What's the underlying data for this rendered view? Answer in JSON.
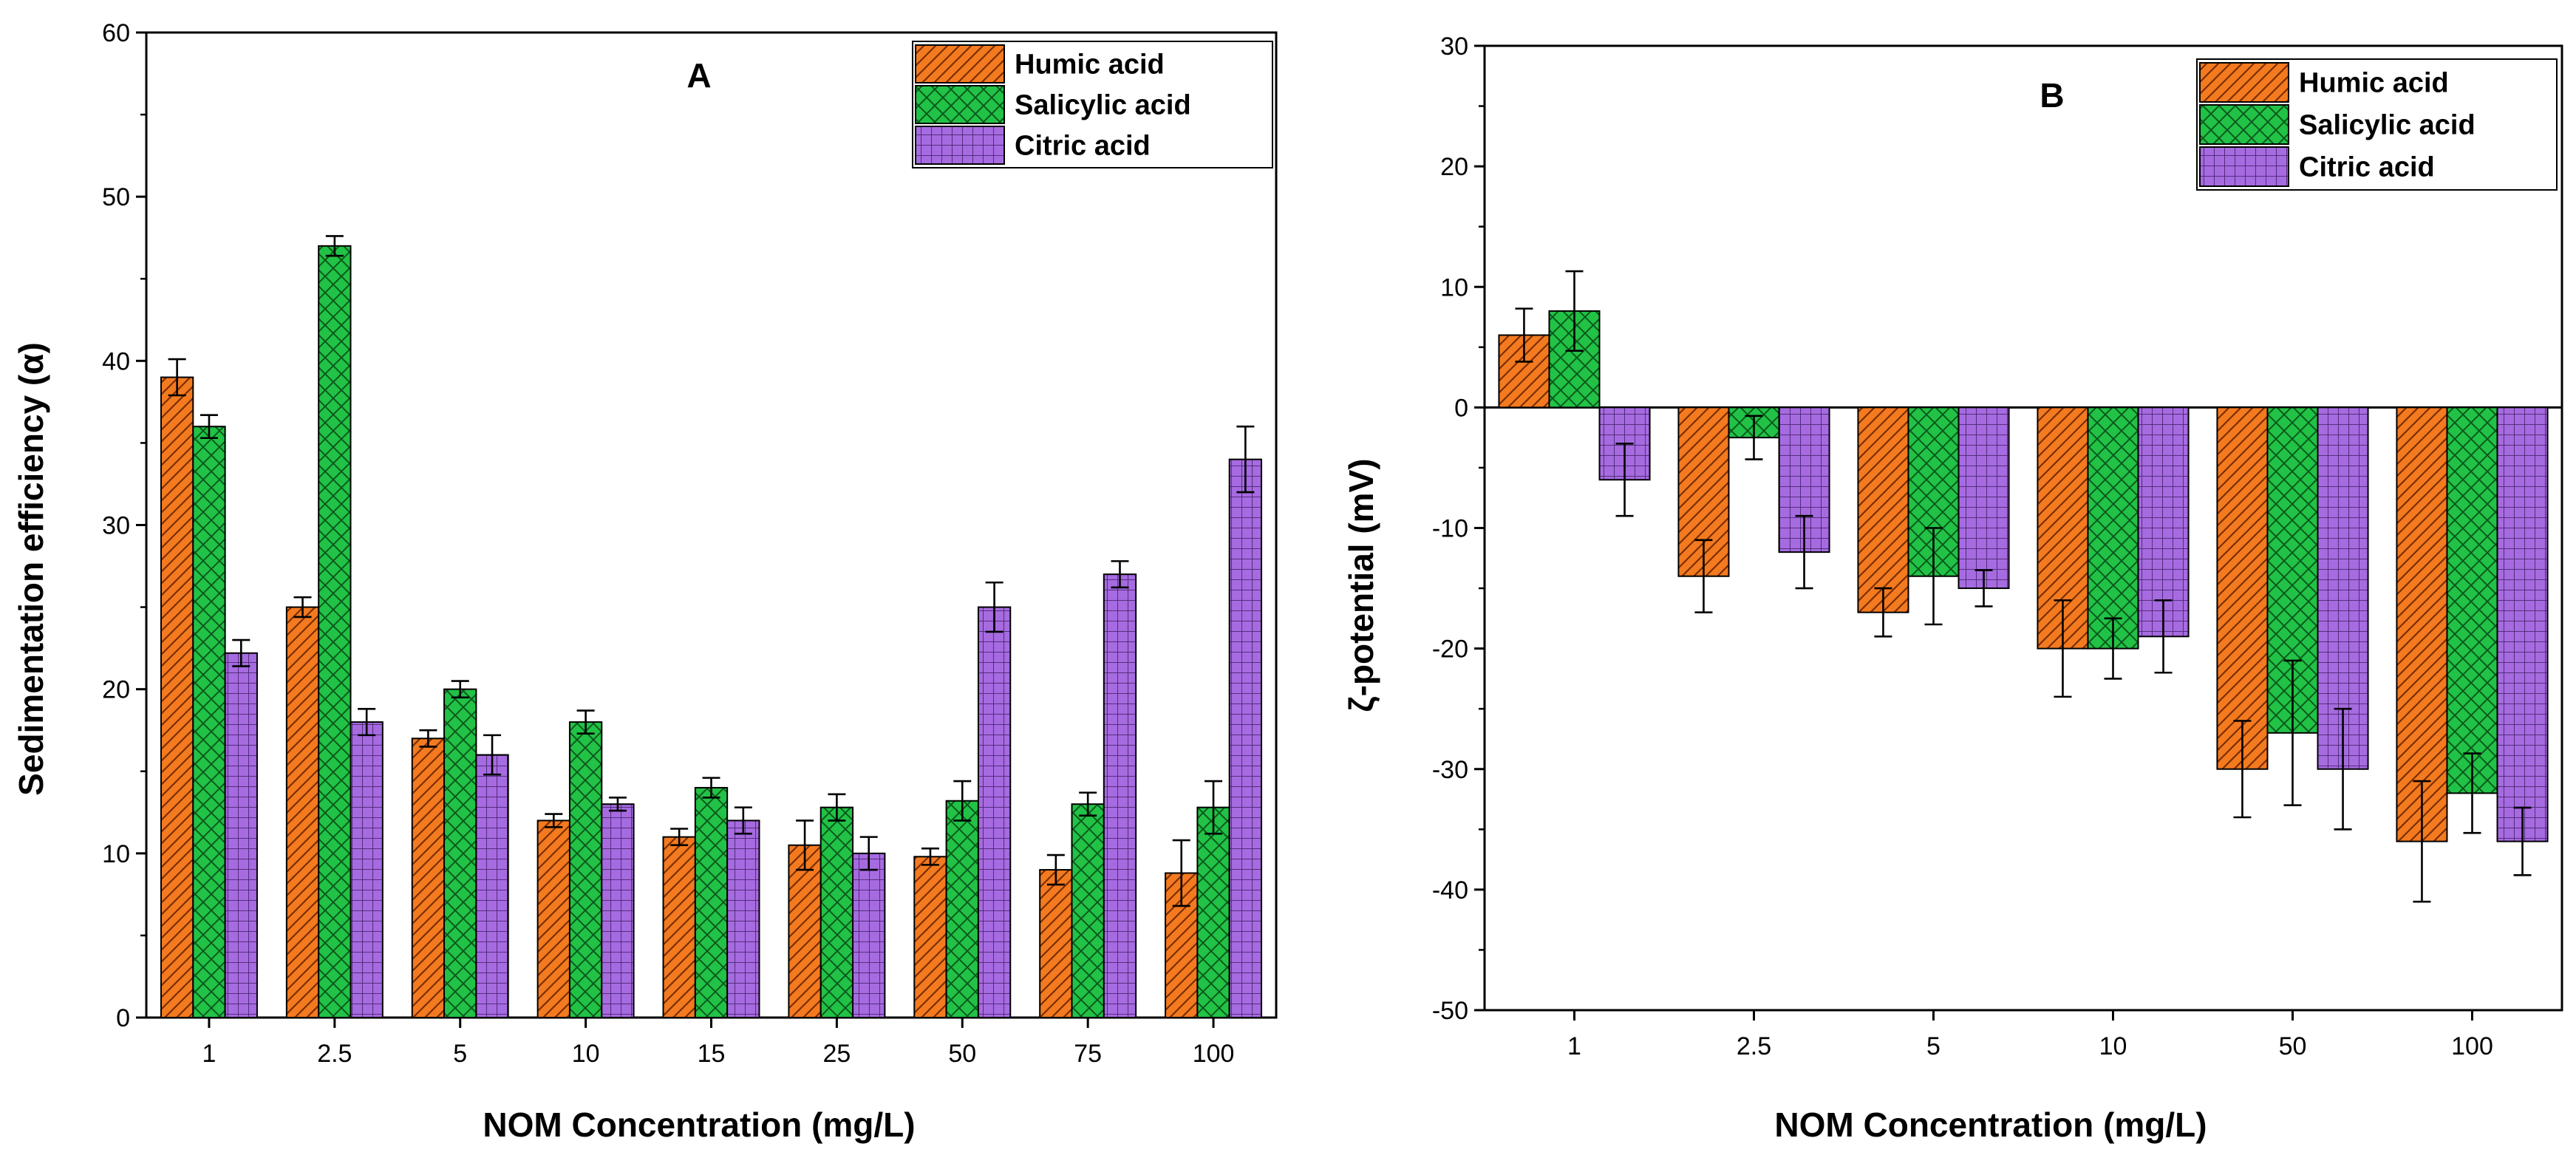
{
  "colors": {
    "Humic acid": "#f47a20",
    "Salicylic acid": "#22c246",
    "Citric acid": "#a66be0"
  },
  "chart_data": [
    {
      "type": "bar",
      "panel": "A",
      "xlabel": "NOM Concentration (mg/L)",
      "ylabel": "Sedimentation efficiency (α)",
      "ylim": [
        0,
        60
      ],
      "yticks": [
        0,
        10,
        20,
        30,
        40,
        50,
        60
      ],
      "categories": [
        "1",
        "2.5",
        "5",
        "10",
        "15",
        "25",
        "50",
        "75",
        "100"
      ],
      "grid": false,
      "legend_position": "top-right",
      "series": [
        {
          "name": "Humic acid",
          "pattern": "diagonal",
          "values": [
            39,
            25,
            17,
            12,
            11,
            10.5,
            9.8,
            9,
            8.8
          ],
          "errors": [
            1.1,
            0.6,
            0.5,
            0.4,
            0.5,
            1.5,
            0.5,
            0.9,
            2.0
          ]
        },
        {
          "name": "Salicylic acid",
          "pattern": "crosshatch",
          "values": [
            36,
            47,
            20,
            18,
            14,
            12.8,
            13.2,
            13,
            12.8
          ],
          "errors": [
            0.7,
            0.6,
            0.5,
            0.7,
            0.6,
            0.8,
            1.2,
            0.7,
            1.6
          ]
        },
        {
          "name": "Citric acid",
          "pattern": "grid",
          "values": [
            22.2,
            18,
            16,
            13,
            12,
            10,
            25,
            27,
            34
          ],
          "errors": [
            0.8,
            0.8,
            1.2,
            0.4,
            0.8,
            1.0,
            1.5,
            0.8,
            2.0
          ]
        }
      ]
    },
    {
      "type": "bar",
      "panel": "B",
      "xlabel": "NOM Concentration (mg/L)",
      "ylabel": "ζ-potential (mV)",
      "ylim": [
        -50,
        30
      ],
      "yticks": [
        -50,
        -40,
        -30,
        -20,
        -10,
        0,
        10,
        20,
        30
      ],
      "categories": [
        "1",
        "2.5",
        "5",
        "10",
        "50",
        "100"
      ],
      "grid": false,
      "zero_line": true,
      "legend_position": "top-right",
      "series": [
        {
          "name": "Humic acid",
          "pattern": "diagonal",
          "values": [
            6,
            -14,
            -17,
            -20,
            -30,
            -36
          ],
          "errors": [
            2.2,
            3.0,
            2.0,
            4.0,
            4.0,
            5.0
          ]
        },
        {
          "name": "Salicylic acid",
          "pattern": "crosshatch",
          "values": [
            8,
            -2.5,
            -14,
            -20,
            -27,
            -32
          ],
          "errors": [
            3.3,
            1.8,
            4.0,
            2.5,
            6.0,
            3.3
          ]
        },
        {
          "name": "Citric acid",
          "pattern": "grid",
          "values": [
            -6,
            -12,
            -15,
            -19,
            -30,
            -36
          ],
          "errors": [
            3.0,
            3.0,
            1.5,
            3.0,
            5.0,
            2.8
          ]
        }
      ]
    }
  ]
}
